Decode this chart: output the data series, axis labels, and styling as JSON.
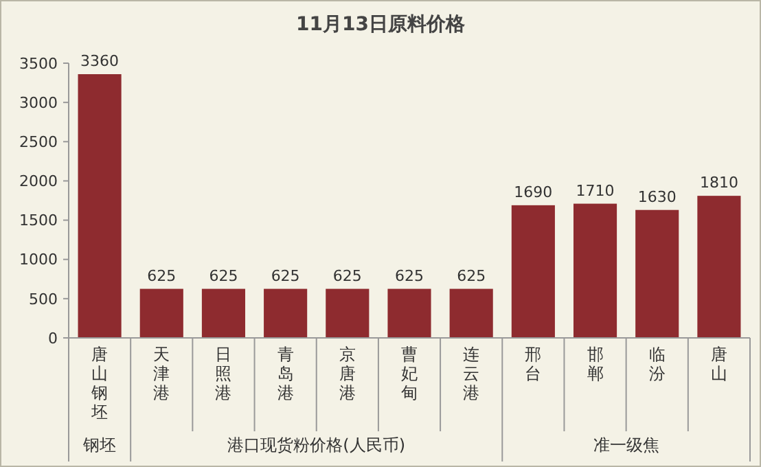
{
  "chart_data": {
    "type": "bar",
    "title": "11月13日原料价格",
    "categories": [
      "唐山钢坯",
      "天津港",
      "日照港",
      "青岛港",
      "京唐港",
      "曹妃甸",
      "连云港",
      "邢台",
      "邯郸",
      "临汾",
      "唐山"
    ],
    "values": [
      3360,
      625,
      625,
      625,
      625,
      625,
      625,
      1690,
      1710,
      1630,
      1810
    ],
    "color": "#8e2b2f",
    "ylim": [
      0,
      3500
    ],
    "yticks": [
      0,
      500,
      1000,
      1500,
      2000,
      2500,
      3000,
      3500
    ],
    "grid": false,
    "data_labels": true,
    "annotations": [
      "钢坯",
      "港口现货粉价格(人民币)",
      "准一级焦"
    ]
  }
}
